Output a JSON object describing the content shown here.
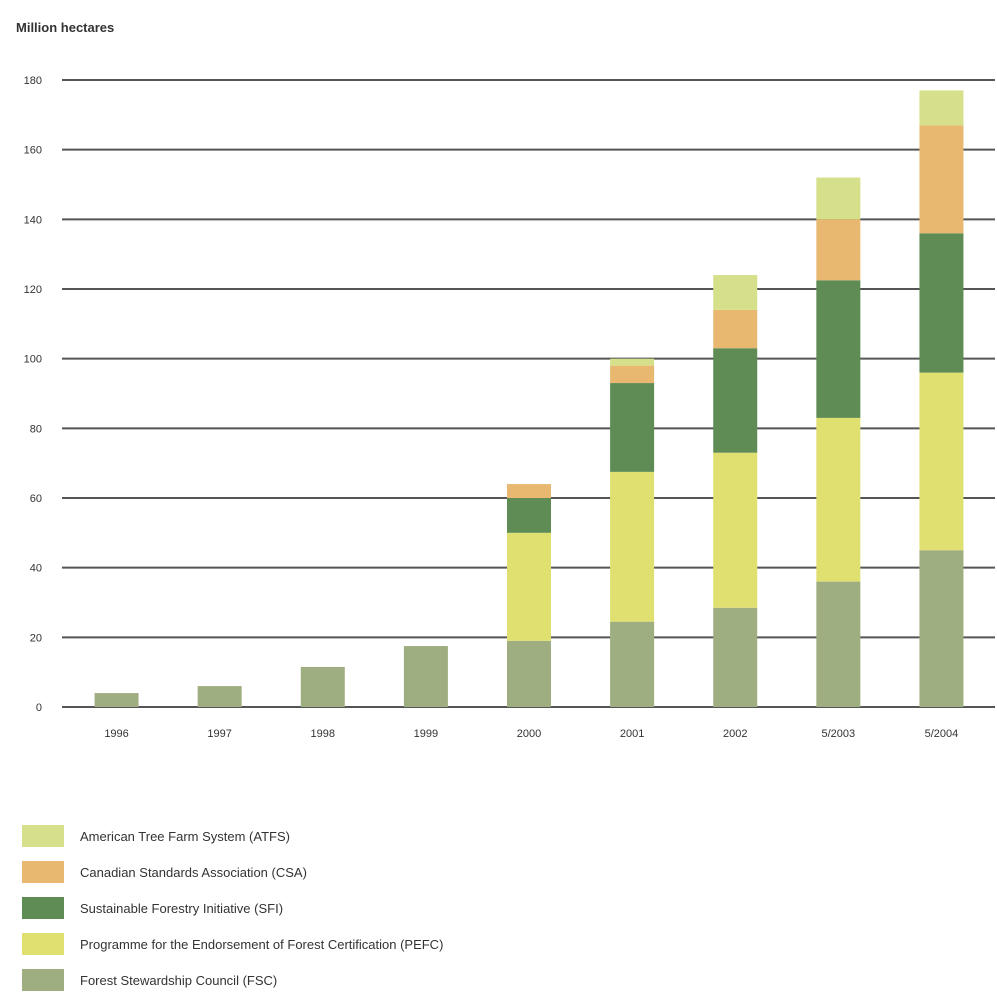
{
  "chart_data": {
    "type": "bar",
    "stacked": true,
    "ylabel": "Million hectares",
    "ylim": [
      0,
      180
    ],
    "yticks": [
      0,
      20,
      40,
      60,
      80,
      100,
      120,
      140,
      160,
      180
    ],
    "grid": true,
    "legend_position": "bottom",
    "categories": [
      "1996",
      "1997",
      "1998",
      "1999",
      "2000",
      "2001",
      "2002",
      "5/2003",
      "5/2004"
    ],
    "series": [
      {
        "name": "Forest Stewardship Council (FSC)",
        "color": "#9fae80",
        "values": [
          4,
          6,
          11.5,
          17.5,
          19,
          24.5,
          28.5,
          36,
          45
        ]
      },
      {
        "name": "Programme for the Endorsement of Forest Certification (PEFC)",
        "color": "#dfe070",
        "values": [
          0,
          0,
          0,
          0,
          31,
          43,
          44.5,
          47,
          51
        ]
      },
      {
        "name": "Sustainable Forestry Initiative (SFI)",
        "color": "#5f8c55",
        "values": [
          0,
          0,
          0,
          0,
          10,
          25.5,
          30,
          39.5,
          40
        ]
      },
      {
        "name": "Canadian Standards Association (CSA)",
        "color": "#e8b870",
        "values": [
          0,
          0,
          0,
          0,
          4,
          5,
          11,
          17.5,
          31
        ]
      },
      {
        "name": "American Tree Farm System (ATFS)",
        "color": "#d6e08a",
        "values": [
          0,
          0,
          0,
          0,
          0,
          2,
          10,
          12,
          10
        ]
      }
    ],
    "legend_order": [
      4,
      3,
      2,
      1,
      0
    ]
  }
}
